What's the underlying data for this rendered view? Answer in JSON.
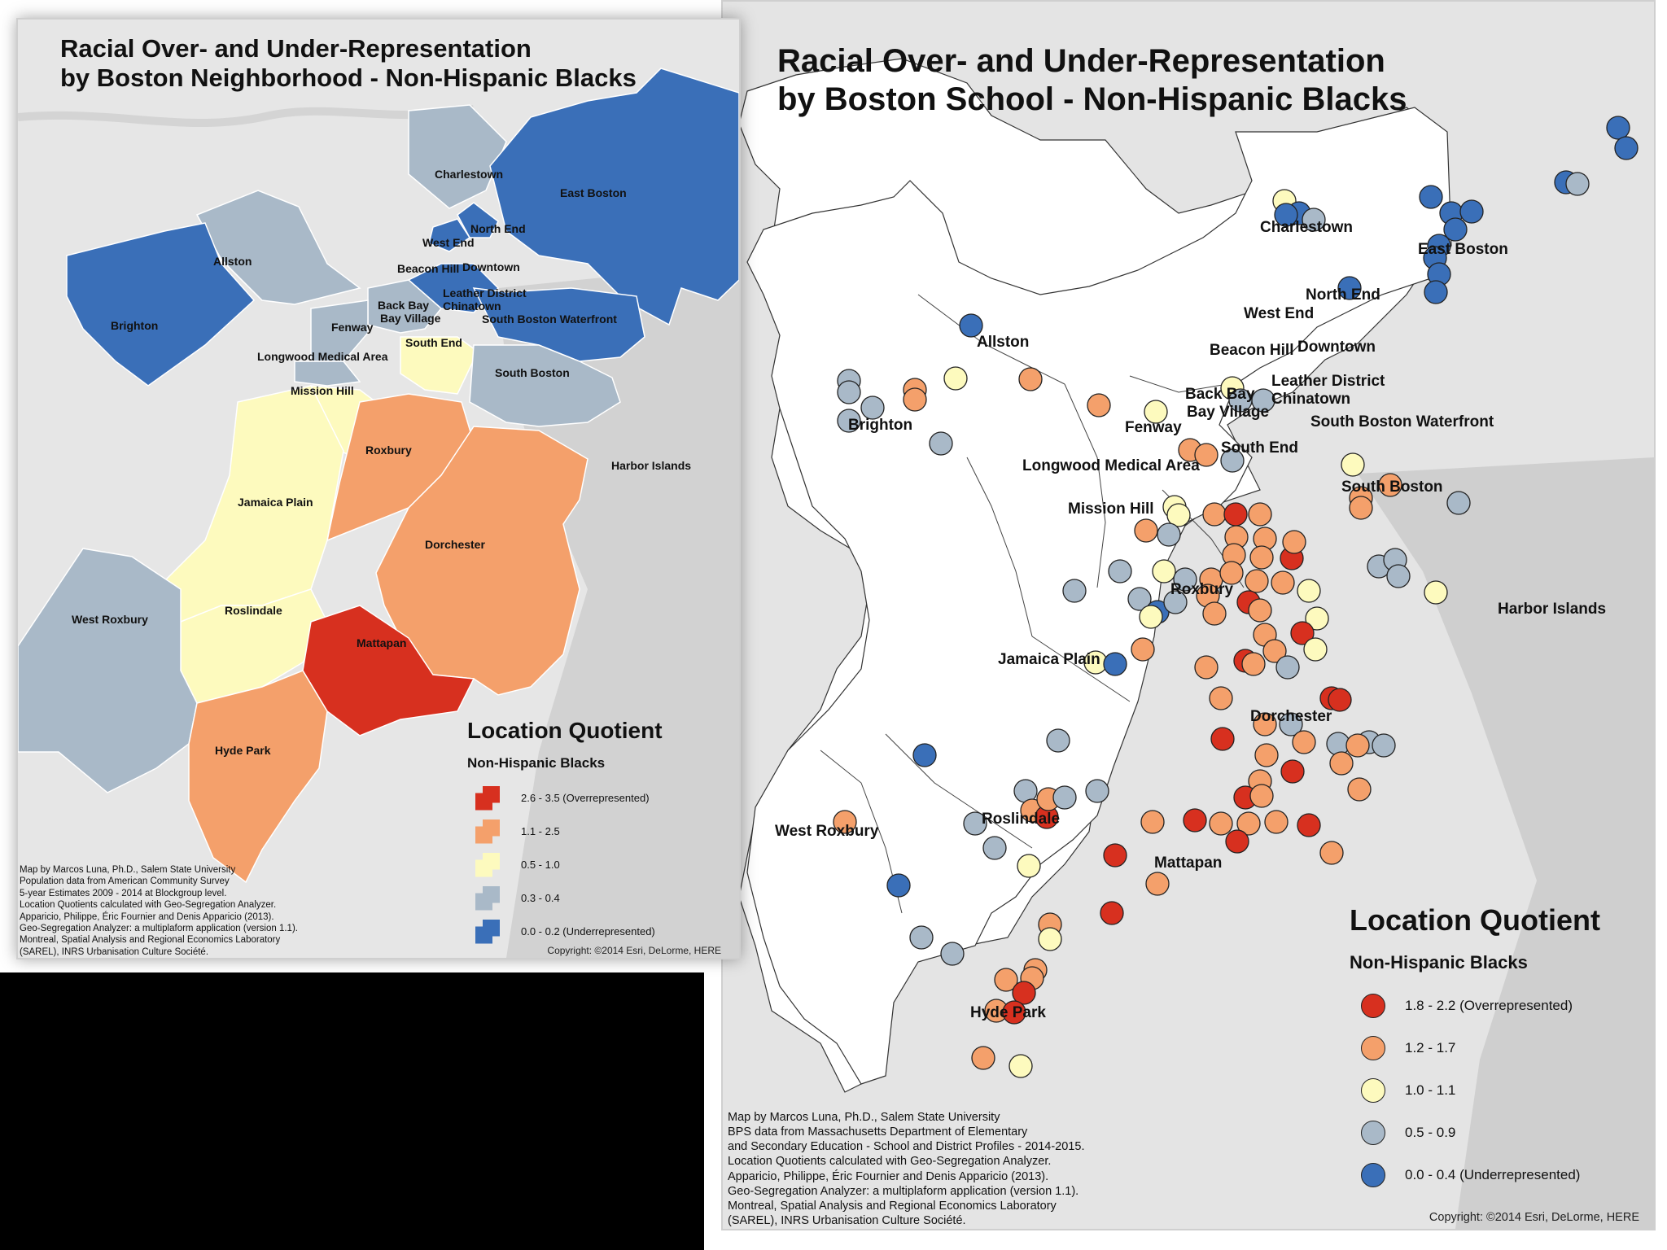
{
  "left_map": {
    "title_line1": "Racial Over- and Under-Representation",
    "title_line2": "by Boston Neighborhood - Non-Hispanic Blacks",
    "neighborhoods": {
      "charlestown": "Charlestown",
      "east_boston": "East Boston",
      "north_end": "North End",
      "west_end": "West End",
      "allston": "Allston",
      "beacon_hill": "Beacon Hill",
      "downtown": "Downtown",
      "leather_district": "Leather District",
      "chinatown": "Chinatown",
      "back_bay": "Back Bay",
      "bay_village": "Bay Village",
      "south_boston_waterfront": "South Boston Waterfront",
      "brighton": "Brighton",
      "fenway": "Fenway",
      "south_end": "South End",
      "longwood": "Longwood Medical Area",
      "south_boston": "South Boston",
      "mission_hill": "Mission Hill",
      "roxbury": "Roxbury",
      "harbor_islands": "Harbor Islands",
      "jamaica_plain": "Jamaica Plain",
      "dorchester": "Dorchester",
      "roslindale": "Roslindale",
      "west_roxbury": "West Roxbury",
      "mattapan": "Mattapan",
      "hyde_park": "Hyde Park"
    },
    "legend": {
      "title": "Location Quotient",
      "subtitle": "Non-Hispanic Blacks",
      "items": [
        {
          "label": "2.6 - 3.5 (Overrepresented)",
          "color": "#d7301f"
        },
        {
          "label": "1.1 - 2.5",
          "color": "#f4a06b"
        },
        {
          "label": "0.5 - 1.0",
          "color": "#fdfabe"
        },
        {
          "label": "0.3 - 0.4",
          "color": "#a9b9c8"
        },
        {
          "label": "0.0 - 0.2 (Underrepresented)",
          "color": "#3a6fb8"
        }
      ]
    },
    "credits": "Map by Marcos Luna, Ph.D., Salem State University\nPopulation data from American Community Survey\n5-year Estimates 2009 - 2014 at Blockgroup level.\nLocation Quotients calculated with Geo-Segregation Analyzer.\nApparicio, Philippe, Éric Fournier and Denis Apparicio (2013).\n Geo-Segregation Analyzer: a multiplaform application (version 1.1).\n Montreal, Spatial Analysis and Regional Economics Laboratory\n(SAREL), INRS Urbanisation Culture Société.",
    "copyright": "Copyright: ©2014 Esri, DeLorme, HERE"
  },
  "right_map": {
    "title_line1": "Racial Over- and Under-Representation",
    "title_line2": "by Boston School - Non-Hispanic Blacks",
    "neighborhoods": {
      "charlestown": "Charlestown",
      "east_boston": "East Boston",
      "north_end": "North End",
      "west_end": "West End",
      "allston": "Allston",
      "beacon_hill": "Beacon Hill",
      "downtown": "Downtown",
      "leather_district": "Leather District",
      "chinatown": "Chinatown",
      "back_bay": "Back Bay",
      "bay_village": "Bay Village",
      "south_boston_waterfront": "South Boston Waterfront",
      "brighton": "Brighton",
      "fenway": "Fenway",
      "south_end": "South End",
      "longwood": "Longwood Medical Area",
      "south_boston": "South Boston",
      "mission_hill": "Mission Hill",
      "roxbury": "Roxbury",
      "harbor_islands": "Harbor Islands",
      "jamaica_plain": "Jamaica Plain",
      "dorchester": "Dorchester",
      "roslindale": "Roslindale",
      "west_roxbury": "West Roxbury",
      "mattapan": "Mattapan",
      "hyde_park": "Hyde Park"
    },
    "legend": {
      "title": "Location Quotient",
      "subtitle": "Non-Hispanic Blacks",
      "items": [
        {
          "label": "1.8 - 2.2 (Overrepresented)",
          "color": "#d7301f"
        },
        {
          "label": "1.2 - 1.7",
          "color": "#f4a06b"
        },
        {
          "label": "1.0 - 1.1",
          "color": "#fdfabe"
        },
        {
          "label": "0.5 - 0.9",
          "color": "#a9b9c8"
        },
        {
          "label": "0.0 - 0.4 (Underrepresented)",
          "color": "#3a6fb8"
        }
      ]
    },
    "credits": "Map by Marcos Luna, Ph.D., Salem State University\nBPS data from Massachusetts Department of Elementary\nand Secondary Education - School and District Profiles - 2014-2015.\nLocation Quotients calculated with Geo-Segregation Analyzer.\nApparicio, Philippe, Éric Fournier and Denis Apparicio (2013).\n Geo-Segregation Analyzer: a multiplaform application (version 1.1).\n Montreal, Spatial Analysis and Regional Economics Laboratory\n(SAREL), INRS Urbanisation Culture Société.",
    "copyright": "Copyright: ©2014 Esri, DeLorme, HERE"
  }
}
